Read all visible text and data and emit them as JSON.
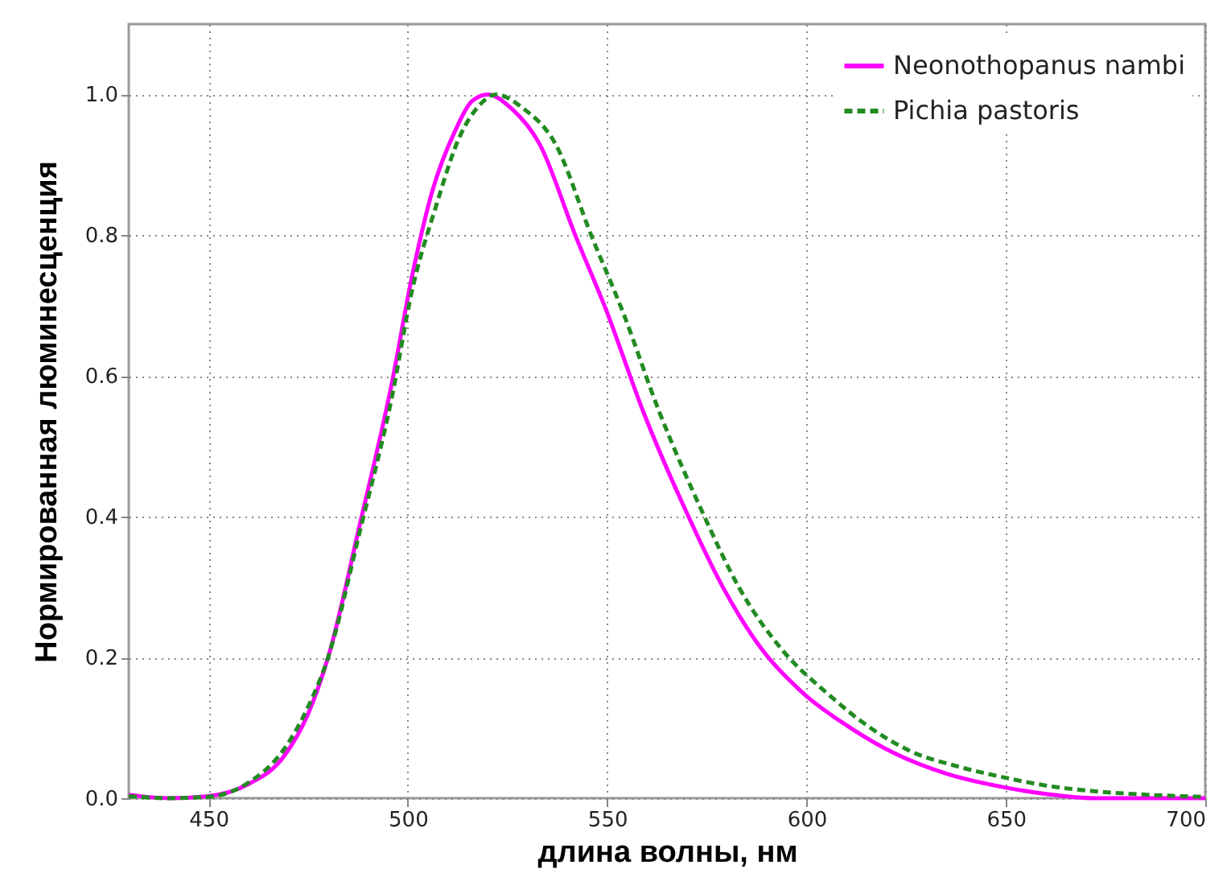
{
  "chart_data": {
    "type": "line",
    "xlabel": "длина волны, нм",
    "ylabel": "Нормированная люминесценция",
    "xlim": [
      430,
      700
    ],
    "ylim": [
      0,
      1.1
    ],
    "xticks": [
      450,
      500,
      550,
      600,
      650,
      700
    ],
    "yticks": [
      {
        "value": 0,
        "label": "0.0"
      },
      {
        "value": 0.2,
        "label": "0.2"
      },
      {
        "value": 0.4,
        "label": "0.4"
      },
      {
        "value": 0.6,
        "label": "0.6"
      },
      {
        "value": 0.8,
        "label": "0.8"
      },
      {
        "value": 1,
        "label": "1.0"
      }
    ],
    "grid": true,
    "legend": "top right",
    "series": [
      {
        "name": "Neonothopanus nambi",
        "color": "#ff00ff",
        "line_style": "solid",
        "x": [
          430,
          440,
          450,
          460,
          469,
          475,
          480,
          488,
          496,
          501,
          506,
          512,
          516,
          520,
          526,
          533,
          542,
          550,
          559,
          570,
          579,
          589,
          599,
          611,
          622,
          635,
          650,
          660,
          672,
          685,
          700
        ],
        "values": [
          0.005,
          0.0,
          0.003,
          0.02,
          0.06,
          0.12,
          0.2,
          0.39,
          0.59,
          0.74,
          0.86,
          0.95,
          0.99,
          1.0,
          0.98,
          0.93,
          0.8,
          0.69,
          0.55,
          0.405,
          0.3,
          0.21,
          0.15,
          0.1,
          0.064,
          0.035,
          0.015,
          0.006,
          0.0,
          0.0,
          0.0
        ]
      },
      {
        "name": "Pichia pastoris",
        "color": "#228b22",
        "line_style": "dashed",
        "x": [
          430,
          440,
          450,
          460,
          469,
          475,
          480,
          488,
          496,
          501,
          507,
          513,
          518,
          522,
          529,
          537,
          546,
          554,
          563,
          574,
          583,
          594,
          605,
          616,
          626,
          638,
          650,
          660,
          672,
          685,
          699
        ],
        "values": [
          0.003,
          0.0,
          0.002,
          0.022,
          0.07,
          0.13,
          0.2,
          0.38,
          0.57,
          0.72,
          0.84,
          0.94,
          0.985,
          1.0,
          0.98,
          0.93,
          0.8,
          0.69,
          0.55,
          0.405,
          0.3,
          0.21,
          0.15,
          0.1,
          0.067,
          0.045,
          0.029,
          0.018,
          0.01,
          0.005,
          0.002
        ]
      }
    ]
  }
}
